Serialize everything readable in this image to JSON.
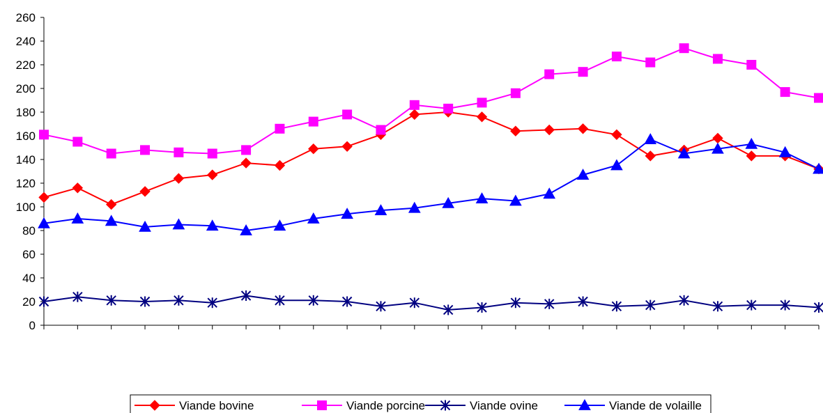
{
  "chart_data": {
    "type": "line",
    "title": "",
    "xlabel": "",
    "ylabel": "",
    "ylim": [
      0,
      260
    ],
    "yticks": [
      0,
      20,
      40,
      60,
      80,
      100,
      120,
      140,
      160,
      180,
      200,
      220,
      240,
      260
    ],
    "x_count": 24,
    "grid": false,
    "legend_position": "bottom",
    "series": [
      {
        "name": "Viande bovine",
        "color": "#ff0000",
        "marker": "diamond",
        "values": [
          108,
          116,
          102,
          113,
          124,
          127,
          137,
          135,
          149,
          151,
          161,
          178,
          180,
          176,
          164,
          165,
          166,
          161,
          143,
          148,
          158,
          143,
          143,
          132
        ]
      },
      {
        "name": "Viande porcine",
        "color": "#ff00ff",
        "marker": "square",
        "values": [
          161,
          155,
          145,
          148,
          146,
          145,
          148,
          166,
          172,
          178,
          165,
          186,
          183,
          188,
          196,
          212,
          214,
          227,
          222,
          234,
          225,
          220,
          197,
          192
        ]
      },
      {
        "name": "Viande ovine",
        "color": "#000080",
        "marker": "star",
        "values": [
          20,
          24,
          21,
          20,
          21,
          19,
          25,
          21,
          21,
          20,
          16,
          19,
          13,
          15,
          19,
          18,
          20,
          16,
          17,
          21,
          16,
          17,
          17,
          15
        ]
      },
      {
        "name": "Viande de volaille",
        "color": "#0000ff",
        "marker": "triangle",
        "values": [
          86,
          90,
          88,
          83,
          85,
          84,
          80,
          84,
          90,
          94,
          97,
          99,
          103,
          107,
          105,
          111,
          127,
          135,
          157,
          145,
          149,
          153,
          146,
          132
        ]
      }
    ]
  }
}
